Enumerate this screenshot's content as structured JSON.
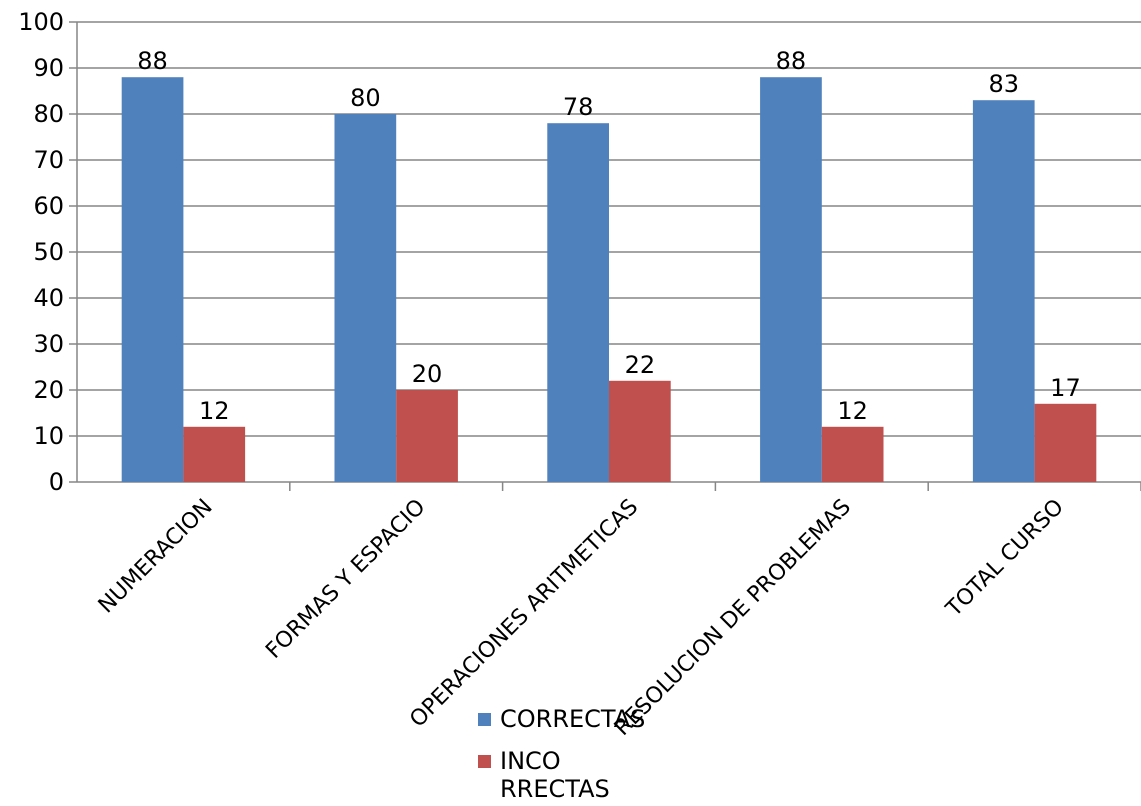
{
  "chart_data": {
    "type": "bar",
    "categories": [
      "NUMERACION",
      "FORMAS Y ESPACIO",
      "OPERACIONES ARITMETICAS",
      "RESOLUCION DE PROBLEMAS",
      "TOTAL CURSO"
    ],
    "series": [
      {
        "name": "CORRECTAS",
        "legend_lines": [
          "CORRECTAS"
        ],
        "color": "#4F81BD",
        "values": [
          88,
          80,
          78,
          88,
          83
        ]
      },
      {
        "name": "INCORRECTAS",
        "legend_lines": [
          "INCO",
          "RRECTAS"
        ],
        "color": "#C0504D",
        "values": [
          12,
          20,
          22,
          12,
          17
        ]
      }
    ],
    "ylim": [
      0,
      100
    ],
    "yticks": [
      0,
      10,
      20,
      30,
      40,
      50,
      60,
      70,
      80,
      90,
      100
    ],
    "grid": true,
    "legend_position": "bottom"
  }
}
